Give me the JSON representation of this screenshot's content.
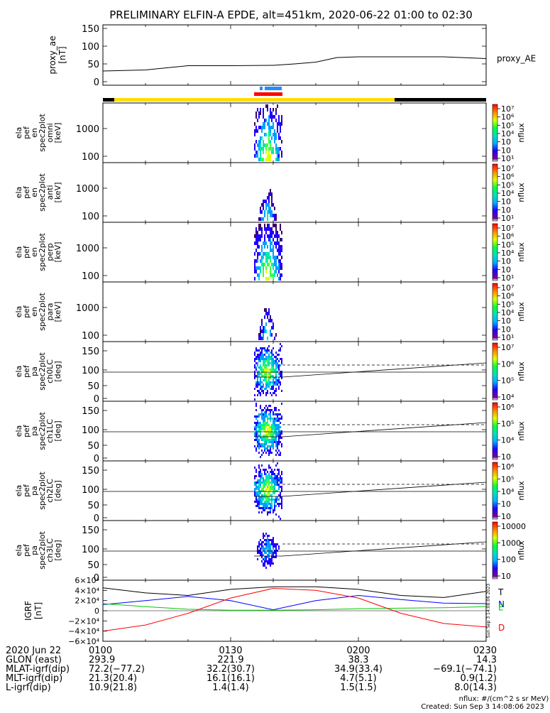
{
  "title": "PRELIMINARY ELFIN-A EPDE, alt=451km, 2020-06-22 01:00 to 02:30",
  "chart_data": [
    {
      "type": "line",
      "name": "proxy_ae",
      "ylabel": [
        "proxy_ae",
        "[nT]"
      ],
      "legend": "proxy_AE",
      "ylim": [
        0,
        160
      ],
      "yticks": [
        "150",
        "100",
        "50",
        "0"
      ],
      "x_minutes": [
        0,
        10,
        20,
        30,
        40,
        45,
        50,
        55,
        60,
        70,
        80,
        90
      ],
      "values": [
        30,
        33,
        45,
        45,
        46,
        50,
        55,
        68,
        70,
        70,
        70,
        65
      ]
    },
    {
      "type": "heatmap",
      "name": "spec2plot_omni",
      "ylabel": [
        "ela",
        "pef",
        "en",
        "spec2plot",
        "omni",
        "[keV]"
      ],
      "yticks": [
        "1000",
        "100"
      ],
      "colorbar": {
        "label": "nflux",
        "ticks": [
          "10⁷",
          "10⁶",
          "10⁵",
          "10⁴",
          "10⁳",
          "10⁲",
          "10¹"
        ]
      }
    },
    {
      "type": "heatmap",
      "name": "spec2plot_anti",
      "ylabel": [
        "ela",
        "pef",
        "en",
        "spec2plot",
        "anti",
        "[keV]"
      ],
      "yticks": [
        "1000",
        "100"
      ],
      "colorbar": {
        "label": "nflux",
        "ticks": [
          "10⁷",
          "10⁶",
          "10⁵",
          "10⁴",
          "10⁳",
          "10⁲",
          "10¹"
        ]
      }
    },
    {
      "type": "heatmap",
      "name": "spec2plot_perp",
      "ylabel": [
        "ela",
        "pef",
        "en",
        "spec2plot",
        "perp",
        "[keV]"
      ],
      "yticks": [
        "1000",
        "100"
      ],
      "colorbar": {
        "label": "nflux",
        "ticks": [
          "10⁷",
          "10⁶",
          "10⁵",
          "10⁴",
          "10⁳",
          "10⁲",
          "10¹"
        ]
      }
    },
    {
      "type": "heatmap",
      "name": "spec2plot_para",
      "ylabel": [
        "ela",
        "pef",
        "en",
        "spec2plot",
        "para",
        "[keV]"
      ],
      "yticks": [
        "1000",
        "100"
      ],
      "colorbar": {
        "label": "nflux",
        "ticks": [
          "10⁷",
          "10⁶",
          "10⁵",
          "10⁴",
          "10⁳",
          "10⁲",
          "10¹"
        ]
      }
    },
    {
      "type": "heatmap",
      "name": "spec2plot_ch0LC",
      "ylabel": [
        "ela",
        "pef",
        "pa",
        "spec2plot",
        "ch0LC",
        "[deg]"
      ],
      "yticks": [
        "150",
        "100",
        "50",
        "0"
      ],
      "colorbar": {
        "label": "nflux",
        "ticks": [
          "10⁷",
          "10⁶",
          "10⁵",
          "10⁴"
        ]
      }
    },
    {
      "type": "heatmap",
      "name": "spec2plot_ch1LC",
      "ylabel": [
        "ela",
        "pef",
        "pa",
        "spec2plot",
        "ch1LC",
        "[deg]"
      ],
      "yticks": [
        "150",
        "100",
        "50",
        "0"
      ],
      "colorbar": {
        "label": "nflux",
        "ticks": [
          "10⁶",
          "10⁵",
          "10⁴",
          "10⁳"
        ]
      }
    },
    {
      "type": "heatmap",
      "name": "spec2plot_ch2LC",
      "ylabel": [
        "ela",
        "pef",
        "pa",
        "spec2plot",
        "ch2LC",
        "[deg]"
      ],
      "yticks": [
        "150",
        "100",
        "50",
        "0"
      ],
      "colorbar": {
        "label": "nflux",
        "ticks": [
          "10⁶",
          "10⁵",
          "10⁴",
          "10⁳",
          "10⁲"
        ]
      }
    },
    {
      "type": "heatmap",
      "name": "spec2plot_ch3LC",
      "ylabel": [
        "ela",
        "pef",
        "pa",
        "spec2plot",
        "ch3LC",
        "[deg]"
      ],
      "yticks": [
        "150",
        "100",
        "50",
        "0"
      ],
      "colorbar": {
        "label": "nflux",
        "ticks": [
          "10000",
          "1000",
          "100",
          "10"
        ]
      }
    },
    {
      "type": "line",
      "name": "IGRF",
      "ylabel": [
        "IGRF",
        "[nT]"
      ],
      "ylim": [
        -60000,
        60000
      ],
      "yticks": [
        "6×10⁴",
        "4×10⁴",
        "2×10⁴",
        "0",
        "−2×10⁴",
        "−4×10⁴",
        "−6×10⁴"
      ],
      "x_minutes": [
        0,
        10,
        20,
        30,
        40,
        50,
        60,
        70,
        80,
        90
      ],
      "series": [
        {
          "name": "T",
          "color": "#000000",
          "values": [
            45000,
            35000,
            30000,
            42000,
            47000,
            47000,
            42000,
            30000,
            26000,
            38000
          ]
        },
        {
          "name": "N",
          "color": "#0000ff",
          "values": [
            12000,
            20000,
            28000,
            20000,
            2000,
            20000,
            30000,
            22000,
            15000,
            14000
          ]
        },
        {
          "name": "E",
          "color": "#00cc00",
          "values": [
            14000,
            8000,
            3000,
            1000,
            1000,
            2000,
            4000,
            5000,
            6000,
            8000
          ]
        },
        {
          "name": "D",
          "color": "#ff0000",
          "values": [
            -40000,
            -28000,
            -5000,
            25000,
            44000,
            40000,
            25000,
            -5000,
            -25000,
            -32000
          ]
        }
      ]
    }
  ],
  "time_axis": {
    "labels": [
      "0100",
      "0130",
      "0200",
      "0230"
    ],
    "minutes": [
      0,
      30,
      60,
      90
    ]
  },
  "footer": {
    "rows": [
      {
        "label": "2020 Jun 22",
        "values": [
          "0100",
          "0130",
          "0200",
          "0230"
        ]
      },
      {
        "label": "GLON (east)",
        "values": [
          "293.9",
          "221.9",
          "38.3",
          "14.3"
        ]
      },
      {
        "label": "MLAT-igrf(dip)",
        "values": [
          "72.2(−77.2)",
          "32.2(30.7)",
          "34.9(33.4)",
          "−69.1(−74.1)"
        ]
      },
      {
        "label": "MLT-igrf(dip)",
        "values": [
          "21.3(20.4)",
          "16.1(16.1)",
          "4.7(5.1)",
          "0.9(1.2)"
        ]
      },
      {
        "label": "L-igrf(dip)",
        "values": [
          "10.9(21.8)",
          "1.4(1.4)",
          "1.5(1.5)",
          "8.0(14.3)"
        ]
      }
    ],
    "nflux_note": "nflux: #/(cm^2 s sr MeV)",
    "created": "Created: Sun Sep  3 14:08:06 2023"
  },
  "side_stamp": "Sun Sep  3 14:08:06 2023",
  "colors": {
    "yellow": "#ffdd00",
    "black": "#000000",
    "red": "#ff0000",
    "blue": "#1e90ff"
  }
}
